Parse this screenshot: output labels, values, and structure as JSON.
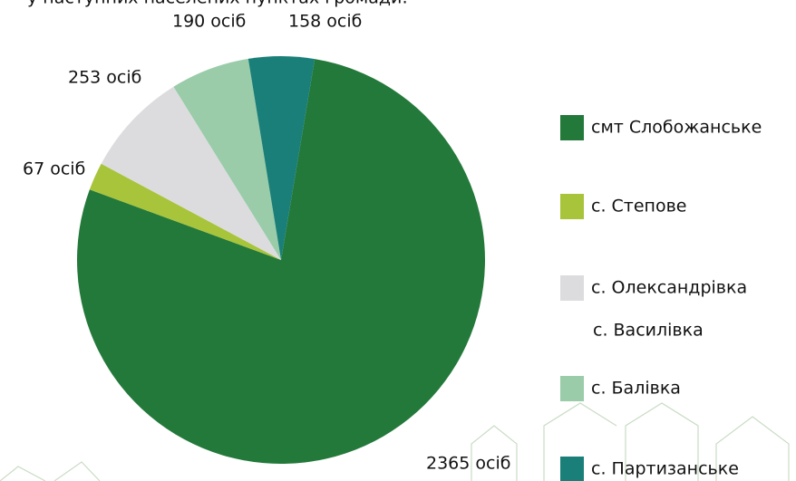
{
  "chart_data": {
    "type": "pie",
    "title": "у наступних населених пунктах громади:",
    "categories": [
      "смт Слобожанське",
      "с. Степове",
      "с. Олександрівка",
      "с. Василівка",
      "с. Балівка",
      "с. Партизанське"
    ],
    "values": [
      2365,
      67,
      253,
      null,
      190,
      158
    ],
    "value_labels": [
      "2365 осіб",
      "67 осіб",
      "253 осіб",
      null,
      "190 осіб",
      "158 осіб"
    ],
    "colors": [
      "#23793a",
      "#a8c43a",
      "#dcdcdf",
      null,
      "#9acca9",
      "#1a7f78"
    ]
  }
}
